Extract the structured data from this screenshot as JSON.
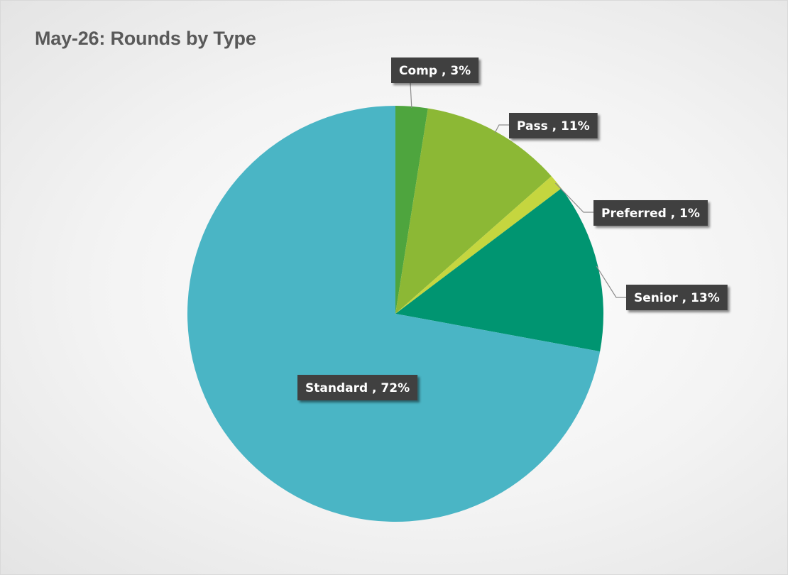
{
  "chart_data": {
    "type": "pie",
    "title": "May-26: Rounds by Type",
    "start_angle_deg": 0,
    "direction": "clockwise",
    "slices": [
      {
        "label": "Comp ",
        "value": 2.5,
        "display": "Comp , 3%",
        "color": "#4ea53e"
      },
      {
        "label": "Pass ",
        "value": 11,
        "display": "Pass , 11%",
        "color": "#8cb835"
      },
      {
        "label": "Preferred ",
        "value": 1.2,
        "display": "Preferred , 1%",
        "color": "#c5d63f"
      },
      {
        "label": "Senior ",
        "value": 13.2,
        "display": "Senior , 13%",
        "color": "#009571"
      },
      {
        "label": "Standard ",
        "value": 72.1,
        "display": "Standard , 72%",
        "color": "#4ab5c5"
      }
    ],
    "label_style": {
      "background": "#404040",
      "text_color": "#ffffff"
    },
    "legend": "none"
  }
}
